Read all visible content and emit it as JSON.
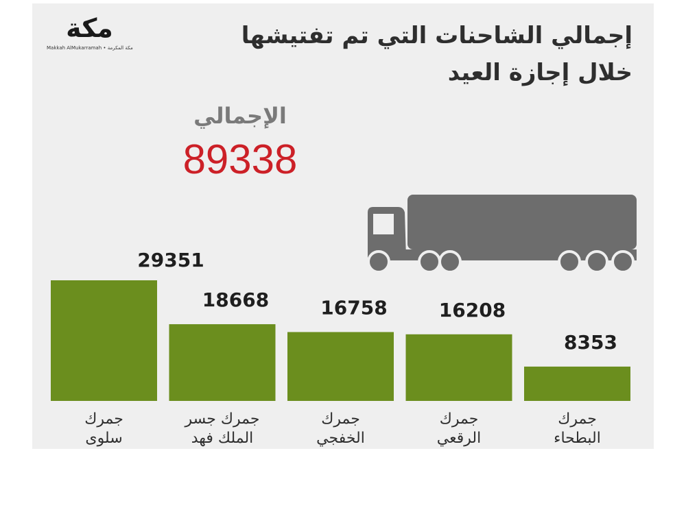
{
  "header": {
    "title_line1": "إجمالي الشاحنات التي تم تفتيشها",
    "title_line2": "خلال إجازة العيد"
  },
  "logo": {
    "word": "مكة",
    "subtitle": "Makkah AlMukarramah • مكة المكرمة"
  },
  "total": {
    "label": "الإجمالي",
    "value": "89338"
  },
  "colors": {
    "bar": "#6b8e1e",
    "total_value": "#cc2027",
    "truck": "#6d6d6d",
    "panel": "#efefef"
  },
  "chart_data": {
    "type": "bar",
    "categories": [
      "جمرك سلوى",
      "جمرك جسر الملك فهد",
      "جمرك الخفجي",
      "جمرك الرقعي",
      "جمرك البطحاء"
    ],
    "category_lines": [
      [
        "جمرك",
        "سلوى"
      ],
      [
        "جمرك جسر",
        "الملك فهد"
      ],
      [
        "جمرك",
        "الخفجي"
      ],
      [
        "جمرك",
        "الرقعي"
      ],
      [
        "جمرك",
        "البطحاء"
      ]
    ],
    "values": [
      29351,
      18668,
      16758,
      16208,
      8353
    ],
    "value_labels": [
      "29351",
      "18668",
      "16758",
      "16208",
      "8353"
    ],
    "title": "إجمالي الشاحنات التي تم تفتيشها خلال إجازة العيد",
    "xlabel": "",
    "ylabel": "",
    "ylim": [
      0,
      29351
    ],
    "grid": false,
    "legend": "none"
  }
}
